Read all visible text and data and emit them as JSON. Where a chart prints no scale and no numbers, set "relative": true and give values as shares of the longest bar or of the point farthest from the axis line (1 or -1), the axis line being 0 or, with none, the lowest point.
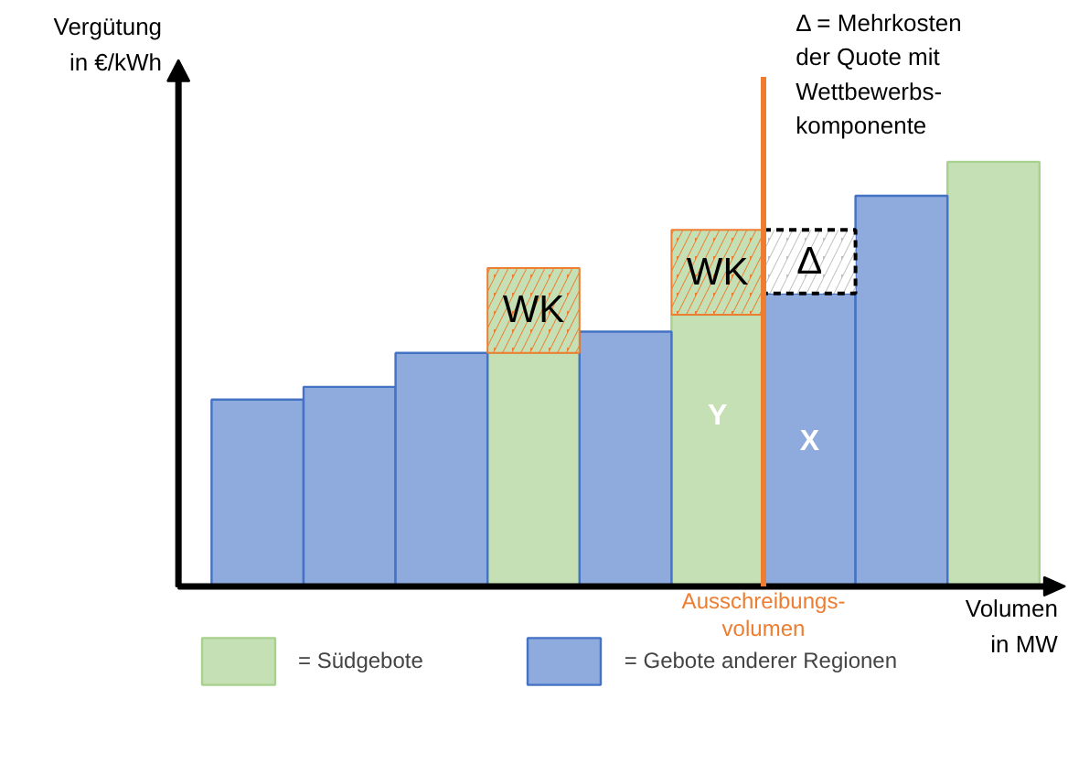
{
  "chart_data": {
    "type": "bar",
    "stacked": true,
    "relative": true,
    "categories": [
      null,
      null,
      null,
      null,
      null,
      null,
      null,
      null,
      null
    ],
    "grid": false,
    "legend": "bottom",
    "ylabel": "Vergütung\nin €/kWh",
    "xlabel": "Volumen\nin MW",
    "series": [
      {
        "name": "= Südgebote",
        "color": "#c5e0b4",
        "values": [
          null,
          null,
          null,
          0.55,
          null,
          0.64,
          null,
          null,
          1.0
        ]
      },
      {
        "name": "= Gebote anderer Regionen",
        "color": "#8faadc",
        "values": [
          0.44,
          0.47,
          0.55,
          null,
          0.6,
          null,
          0.69,
          0.92,
          null
        ]
      },
      {
        "name": "WK",
        "color": "#ed7d31",
        "values": [
          null,
          null,
          null,
          0.2,
          null,
          0.2,
          null,
          null,
          null
        ]
      },
      {
        "name": "Δ",
        "color": "#bfbfbf",
        "values": [
          null,
          null,
          null,
          null,
          null,
          null,
          0.15,
          null,
          null
        ]
      }
    ],
    "annotations": [
      "Y",
      "X",
      "Ausschreibungs-\nvolumen",
      "Δ = Mehrkosten\nder Quote mit\nWettbewerbs-\nkomponente"
    ]
  }
}
